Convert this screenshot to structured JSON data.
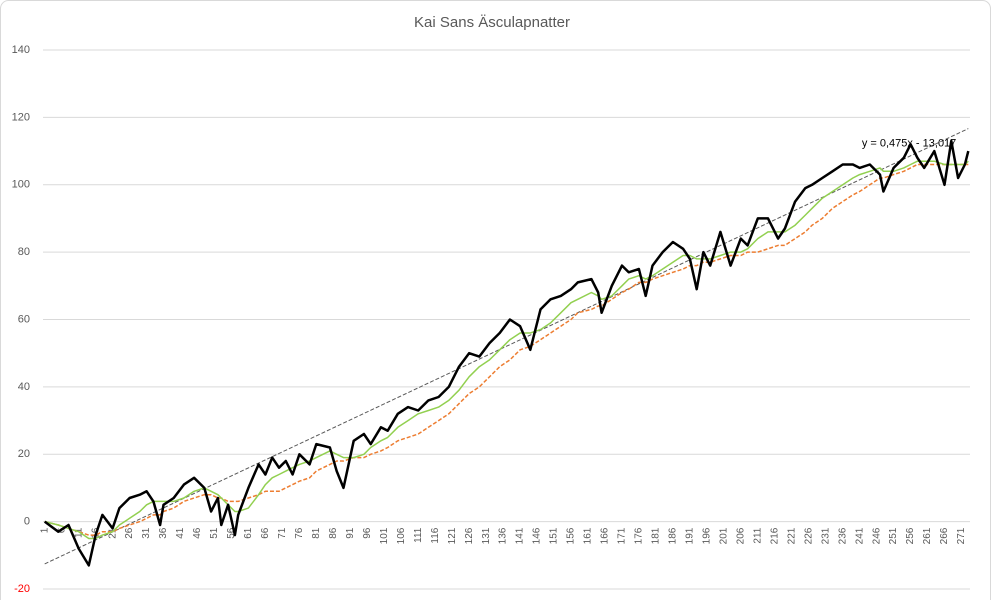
{
  "chart_data": {
    "type": "line",
    "title": "Kai Sans Äsculapnatter",
    "x": [
      1,
      5,
      8,
      11,
      14,
      16,
      18,
      21,
      23,
      26,
      29,
      31,
      33,
      35,
      36,
      39,
      42,
      45,
      48,
      50,
      52,
      53,
      55,
      57,
      58,
      61,
      64,
      66,
      68,
      70,
      72,
      74,
      76,
      79,
      81,
      85,
      87,
      89,
      92,
      95,
      97,
      100,
      102,
      105,
      108,
      111,
      114,
      117,
      120,
      123,
      126,
      129,
      132,
      135,
      138,
      141,
      144,
      147,
      150,
      153,
      156,
      158,
      162,
      164,
      165,
      168,
      171,
      173,
      176,
      178,
      180,
      183,
      186,
      189,
      191,
      193,
      195,
      197,
      200,
      203,
      206,
      208,
      211,
      214,
      217,
      219,
      222,
      225,
      227,
      230,
      233,
      236,
      239,
      241,
      244,
      247,
      248,
      251,
      254,
      256,
      258,
      260,
      263,
      266,
      268,
      270,
      272,
      273
    ],
    "series": [
      {
        "color": "#000000",
        "width": 2.5,
        "dash": false,
        "values": [
          0,
          -3,
          -1,
          -8,
          -13,
          -4,
          2,
          -2,
          4,
          7,
          8,
          9,
          6,
          -1,
          5,
          7,
          11,
          13,
          10,
          3,
          7,
          -1,
          5,
          -4,
          2,
          10,
          17,
          14,
          19,
          16,
          18,
          14,
          20,
          17,
          23,
          22,
          15,
          10,
          24,
          26,
          23,
          28,
          27,
          32,
          34,
          33,
          36,
          37,
          40,
          46,
          50,
          49,
          53,
          56,
          60,
          58,
          51,
          63,
          66,
          67,
          69,
          71,
          72,
          68,
          62,
          70,
          76,
          74,
          75,
          67,
          76,
          80,
          83,
          81,
          78,
          69,
          80,
          76,
          86,
          76,
          84,
          82,
          90,
          90,
          84,
          87,
          95,
          99,
          100,
          102,
          104,
          106,
          106,
          105,
          106,
          103,
          98,
          105,
          108,
          112,
          108,
          105,
          110,
          100,
          113,
          102,
          106,
          110
        ]
      },
      {
        "color": "#92d050",
        "width": 1.5,
        "dash": false,
        "values": [
          0,
          -1,
          -2,
          -3,
          -5,
          -5,
          -4,
          -3,
          -1,
          1,
          3,
          5,
          6,
          6,
          6,
          6,
          7,
          9,
          10,
          9,
          8,
          7,
          5,
          3,
          3,
          4,
          8,
          11,
          13,
          14,
          15,
          16,
          17,
          18,
          19,
          21,
          20,
          19,
          19,
          20,
          22,
          24,
          25,
          28,
          30,
          32,
          33,
          34,
          36,
          39,
          43,
          46,
          48,
          51,
          54,
          56,
          56,
          57,
          59,
          62,
          65,
          66,
          68,
          67,
          66,
          67,
          70,
          72,
          73,
          72,
          73,
          75,
          77,
          79,
          79,
          78,
          78,
          78,
          79,
          80,
          80,
          81,
          84,
          86,
          86,
          86,
          88,
          91,
          93,
          96,
          98,
          100,
          102,
          103,
          104,
          105,
          104,
          104,
          105,
          106,
          107,
          107,
          107,
          106,
          106,
          106,
          106,
          107
        ]
      },
      {
        "color": "#ed7d31",
        "width": 1.5,
        "dash": true,
        "values": [
          0,
          -1,
          -2,
          -3,
          -4,
          -4,
          -3,
          -3,
          -2,
          -1,
          0,
          1,
          2,
          2,
          3,
          4,
          6,
          7,
          8,
          8,
          7,
          7,
          6,
          6,
          6,
          7,
          8,
          9,
          9,
          9,
          10,
          11,
          12,
          13,
          15,
          17,
          18,
          18,
          19,
          19,
          20,
          21,
          22,
          24,
          25,
          26,
          28,
          30,
          32,
          35,
          38,
          40,
          43,
          46,
          48,
          51,
          52,
          54,
          56,
          58,
          60,
          62,
          63,
          64,
          64,
          66,
          68,
          69,
          71,
          71,
          72,
          73,
          74,
          75,
          76,
          76,
          77,
          77,
          78,
          79,
          79,
          80,
          80,
          81,
          82,
          82,
          84,
          86,
          88,
          90,
          93,
          95,
          97,
          98,
          100,
          102,
          102,
          103,
          104,
          105,
          106,
          106,
          106,
          106,
          106,
          106,
          106,
          106
        ]
      }
    ],
    "trendline": {
      "x": [
        1,
        273
      ],
      "values": [
        -12.54,
        116.66
      ],
      "color": "#595959",
      "label": "y = 0,475x - 13,017"
    },
    "xlim": [
      0.5,
      273.5
    ],
    "xticks": [
      1,
      6,
      11,
      16,
      21,
      26,
      31,
      36,
      41,
      46,
      51,
      56,
      61,
      66,
      71,
      76,
      81,
      86,
      91,
      96,
      101,
      106,
      111,
      116,
      121,
      126,
      131,
      136,
      141,
      146,
      151,
      156,
      161,
      166,
      171,
      176,
      181,
      186,
      191,
      196,
      201,
      206,
      211,
      216,
      221,
      226,
      231,
      236,
      241,
      246,
      251,
      256,
      261,
      266,
      271
    ],
    "ylim": [
      -20,
      140
    ],
    "yticks": [
      -20,
      0,
      20,
      40,
      60,
      80,
      100,
      120,
      140
    ],
    "grid": true,
    "negative_tick_color": "#ff0000"
  }
}
